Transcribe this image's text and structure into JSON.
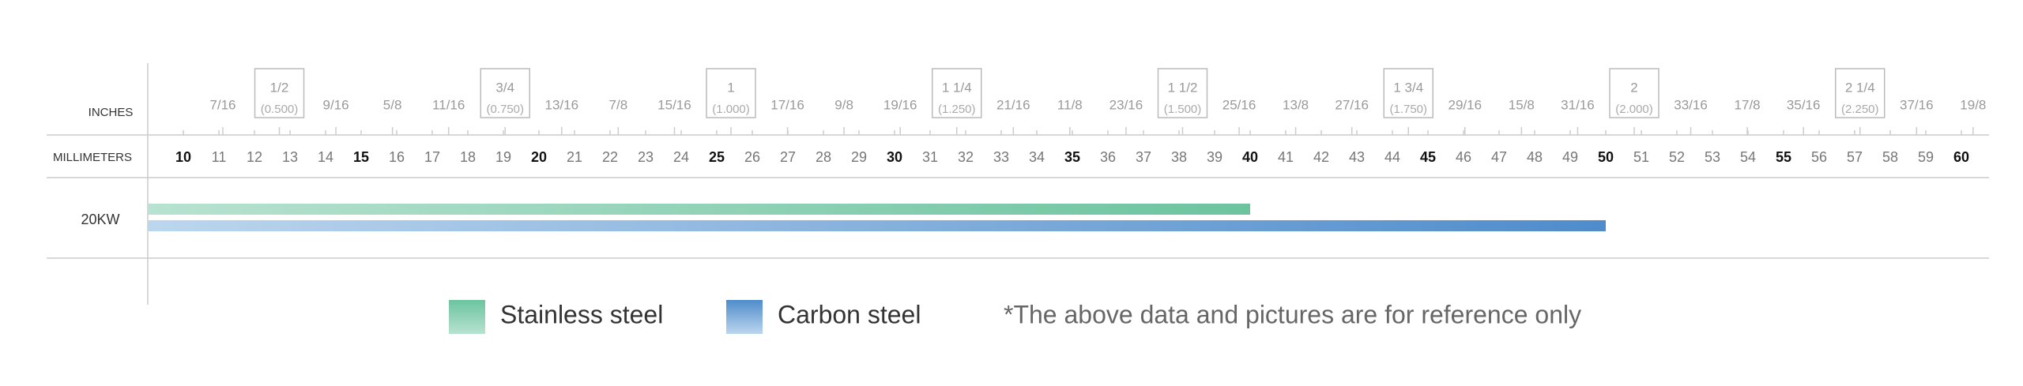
{
  "chart_data": {
    "type": "bar",
    "orientation": "horizontal",
    "inch_axis_label": "INCHES",
    "mm_axis_label": "MILLIMETERS",
    "categories": [
      "20KW"
    ],
    "series": [
      {
        "name": "Stainless steel",
        "color": "#6cc49f",
        "color_light": "#b8e2d1",
        "values": [
          40
        ]
      },
      {
        "name": "Carbon steel",
        "color": "#4f8ccb",
        "color_light": "#bcd6ee",
        "values": [
          50
        ]
      }
    ],
    "xlim": [
      9,
      61
    ],
    "xticks": [
      10,
      11,
      12,
      13,
      14,
      15,
      16,
      17,
      18,
      19,
      20,
      21,
      22,
      23,
      24,
      25,
      26,
      27,
      28,
      29,
      30,
      31,
      32,
      33,
      34,
      35,
      36,
      37,
      38,
      39,
      40,
      41,
      42,
      43,
      44,
      45,
      46,
      47,
      48,
      49,
      50,
      51,
      52,
      53,
      54,
      55,
      56,
      57,
      58,
      59,
      60
    ],
    "inch_ticks": [
      {
        "value": 11.11,
        "label": "7/16"
      },
      {
        "value": 12.7,
        "label": "1/2",
        "decimal": "(0.500)"
      },
      {
        "value": 14.29,
        "label": "9/16"
      },
      {
        "value": 15.88,
        "label": "5/8"
      },
      {
        "value": 17.46,
        "label": "11/16"
      },
      {
        "value": 19.05,
        "label": "3/4",
        "decimal": "(0.750)"
      },
      {
        "value": 20.64,
        "label": "13/16"
      },
      {
        "value": 22.23,
        "label": "7/8"
      },
      {
        "value": 23.81,
        "label": "15/16"
      },
      {
        "value": 25.4,
        "label": "1",
        "decimal": "(1.000)"
      },
      {
        "value": 26.99,
        "label": "17/16"
      },
      {
        "value": 28.58,
        "label": "9/8"
      },
      {
        "value": 30.16,
        "label": "19/16"
      },
      {
        "value": 31.75,
        "label": "1 1/4",
        "decimal": "(1.250)"
      },
      {
        "value": 33.34,
        "label": "21/16"
      },
      {
        "value": 34.93,
        "label": "11/8"
      },
      {
        "value": 36.51,
        "label": "23/16"
      },
      {
        "value": 38.1,
        "label": "1 1/2",
        "decimal": "(1.500)"
      },
      {
        "value": 39.69,
        "label": "25/16"
      },
      {
        "value": 41.28,
        "label": "13/8"
      },
      {
        "value": 42.86,
        "label": "27/16"
      },
      {
        "value": 44.45,
        "label": "1 3/4",
        "decimal": "(1.750)"
      },
      {
        "value": 46.04,
        "label": "29/16"
      },
      {
        "value": 47.63,
        "label": "15/8"
      },
      {
        "value": 49.21,
        "label": "31/16"
      },
      {
        "value": 50.8,
        "label": "2",
        "decimal": "(2.000)"
      },
      {
        "value": 52.39,
        "label": "33/16"
      },
      {
        "value": 53.98,
        "label": "17/8"
      },
      {
        "value": 55.56,
        "label": "35/16"
      },
      {
        "value": 57.15,
        "label": "2 1/4",
        "decimal": "(2.250)"
      },
      {
        "value": 58.74,
        "label": "37/16"
      },
      {
        "value": 60.33,
        "label": "19/8"
      }
    ],
    "note": "*The above data and pictures are for reference only"
  }
}
